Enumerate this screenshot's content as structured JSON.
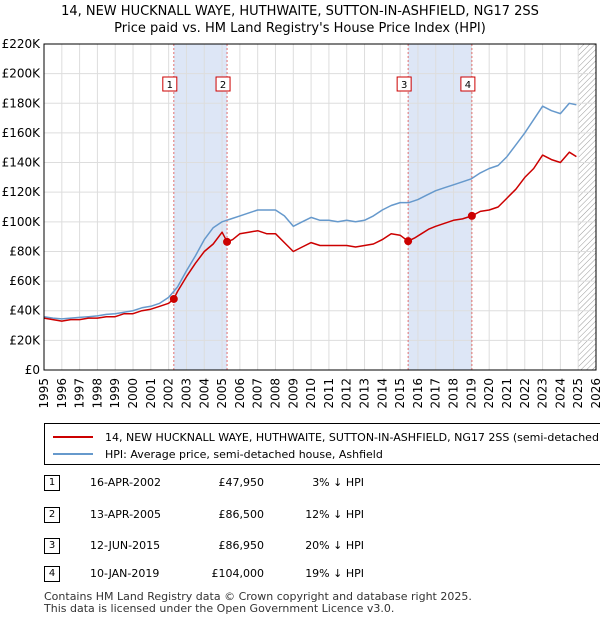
{
  "title_line1": "14, NEW HUCKNALL WAYE, HUTHWAITE, SUTTON-IN-ASHFIELD, NG17 2SS",
  "title_line2": "Price paid vs. HM Land Registry's House Price Index (HPI)",
  "colors": {
    "red": "#cc0000",
    "blue": "#6699cc",
    "shade": "#dde6f6",
    "grid": "#dddddd",
    "hatch": "#999999"
  },
  "chart_data": {
    "type": "line",
    "xlim": [
      1995,
      2026
    ],
    "ylim": [
      0,
      220000
    ],
    "y_ticks": [
      0,
      20000,
      40000,
      60000,
      80000,
      100000,
      120000,
      140000,
      160000,
      180000,
      200000,
      220000
    ],
    "y_tick_labels": [
      "£0",
      "£20K",
      "£40K",
      "£60K",
      "£80K",
      "£100K",
      "£120K",
      "£140K",
      "£160K",
      "£180K",
      "£200K",
      "£220K"
    ],
    "x_ticks": [
      1995,
      1996,
      1997,
      1998,
      1999,
      2000,
      2001,
      2002,
      2003,
      2004,
      2005,
      2006,
      2007,
      2008,
      2009,
      2010,
      2011,
      2012,
      2013,
      2014,
      2015,
      2016,
      2017,
      2018,
      2019,
      2020,
      2021,
      2022,
      2023,
      2024,
      2025,
      2026
    ],
    "projection_start": 2025.0,
    "series": [
      {
        "name": "14, NEW HUCKNALL WAYE, HUTHWAITE, SUTTON-IN-ASHFIELD, NG17 2SS (semi-detached house)",
        "color": "#cc0000",
        "x": [
          1995.0,
          1995.5,
          1996.0,
          1996.5,
          1997.0,
          1997.5,
          1998.0,
          1998.5,
          1999.0,
          1999.5,
          2000.0,
          2000.5,
          2001.0,
          2001.5,
          2002.0,
          2002.29,
          2002.5,
          2003.0,
          2003.5,
          2004.0,
          2004.5,
          2005.0,
          2005.28,
          2005.6,
          2006.0,
          2006.5,
          2007.0,
          2007.5,
          2008.0,
          2008.5,
          2009.0,
          2009.5,
          2010.0,
          2010.5,
          2011.0,
          2011.5,
          2012.0,
          2012.5,
          2013.0,
          2013.5,
          2014.0,
          2014.5,
          2015.0,
          2015.45,
          2015.8,
          2016.2,
          2016.6,
          2017.0,
          2017.5,
          2018.0,
          2018.5,
          2019.03,
          2019.5,
          2020.0,
          2020.5,
          2021.0,
          2021.5,
          2022.0,
          2022.5,
          2023.0,
          2023.5,
          2024.0,
          2024.5,
          2024.9
        ],
        "values": [
          35000,
          34000,
          33000,
          34000,
          34000,
          35000,
          35000,
          36000,
          36000,
          38000,
          38000,
          40000,
          41000,
          43000,
          45000,
          47950,
          53000,
          63000,
          72000,
          80000,
          85000,
          93000,
          86500,
          88000,
          92000,
          93000,
          94000,
          92000,
          92000,
          86000,
          80000,
          83000,
          86000,
          84000,
          84000,
          84000,
          84000,
          83000,
          84000,
          85000,
          88000,
          92000,
          91000,
          86950,
          89000,
          92000,
          95000,
          97000,
          99000,
          101000,
          102000,
          104000,
          107000,
          108000,
          110000,
          116000,
          122000,
          130000,
          136000,
          145000,
          142000,
          140000,
          147000,
          144000
        ]
      },
      {
        "name": "HPI: Average price, semi-detached house, Ashfield",
        "color": "#6699cc",
        "x": [
          1995.0,
          1995.5,
          1996.0,
          1996.5,
          1997.0,
          1997.5,
          1998.0,
          1998.5,
          1999.0,
          1999.5,
          2000.0,
          2000.5,
          2001.0,
          2001.5,
          2002.0,
          2002.5,
          2003.0,
          2003.5,
          2004.0,
          2004.5,
          2005.0,
          2005.5,
          2006.0,
          2006.5,
          2007.0,
          2007.5,
          2008.0,
          2008.5,
          2009.0,
          2009.5,
          2010.0,
          2010.5,
          2011.0,
          2011.5,
          2012.0,
          2012.5,
          2013.0,
          2013.5,
          2014.0,
          2014.5,
          2015.0,
          2015.5,
          2016.0,
          2016.5,
          2017.0,
          2017.5,
          2018.0,
          2018.5,
          2019.0,
          2019.5,
          2020.0,
          2020.5,
          2021.0,
          2021.5,
          2022.0,
          2022.5,
          2023.0,
          2023.5,
          2024.0,
          2024.5,
          2024.9
        ],
        "values": [
          36000,
          35000,
          34500,
          35000,
          35500,
          36000,
          36500,
          37500,
          38000,
          39000,
          40000,
          42000,
          43000,
          45000,
          49000,
          56000,
          67000,
          77000,
          88000,
          96000,
          100000,
          102000,
          104000,
          106000,
          108000,
          108000,
          108000,
          104000,
          97000,
          100000,
          103000,
          101000,
          101000,
          100000,
          101000,
          100000,
          101000,
          104000,
          108000,
          111000,
          113000,
          113000,
          115000,
          118000,
          121000,
          123000,
          125000,
          127000,
          129000,
          133000,
          136000,
          138000,
          144000,
          152000,
          160000,
          169000,
          178000,
          175000,
          173000,
          180000,
          179000
        ]
      }
    ],
    "transactions": [
      {
        "num": "1",
        "year": 2002.29,
        "value": 47950,
        "date": "16-APR-2002",
        "price": "£47,950",
        "hpi": "3% ↓ HPI"
      },
      {
        "num": "2",
        "year": 2005.28,
        "value": 86500,
        "date": "13-APR-2005",
        "price": "£86,500",
        "hpi": "12% ↓ HPI"
      },
      {
        "num": "3",
        "year": 2015.45,
        "value": 86950,
        "date": "12-JUN-2015",
        "price": "£86,950",
        "hpi": "20% ↓ HPI"
      },
      {
        "num": "4",
        "year": 2019.03,
        "value": 104000,
        "date": "10-JAN-2019",
        "price": "£104,000",
        "hpi": "19% ↓ HPI"
      }
    ]
  },
  "legend": {
    "red_label": "14, NEW HUCKNALL WAYE, HUTHWAITE, SUTTON-IN-ASHFIELD, NG17 2SS (semi-detached house)",
    "blue_label": "HPI: Average price, semi-detached house, Ashfield"
  },
  "footer": {
    "line1": "Contains HM Land Registry data © Crown copyright and database right 2025.",
    "line2": "This data is licensed under the Open Government Licence v3.0."
  }
}
